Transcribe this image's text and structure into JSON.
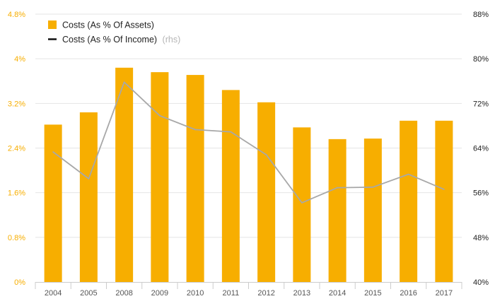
{
  "colors": {
    "bar": "#f7ae00",
    "line": "#a8a8a8",
    "legend_line": "#111111",
    "left_axis_text": "#f7ae00",
    "grid": "#e4e4e4",
    "axis": "#cccccc"
  },
  "legend": {
    "bar_label": "Costs (As % Of Assets)",
    "line_label": "Costs (As % Of Income)",
    "line_suffix": "(rhs)"
  },
  "chart_data": {
    "type": "bar",
    "categories": [
      "2004",
      "2005",
      "2008",
      "2009",
      "2010",
      "2011",
      "2012",
      "2013",
      "2014",
      "2015",
      "2016",
      "2017"
    ],
    "series": [
      {
        "name": "Costs (As % Of Assets)",
        "type": "bar",
        "axis": "left",
        "values": [
          2.82,
          3.04,
          3.84,
          3.76,
          3.71,
          3.44,
          3.22,
          2.77,
          2.56,
          2.57,
          2.89,
          2.89
        ]
      },
      {
        "name": "Costs (As % Of Income)",
        "type": "line",
        "axis": "right",
        "values": [
          63.3,
          58.5,
          75.8,
          69.8,
          67.3,
          66.9,
          62.8,
          54.2,
          56.9,
          57.0,
          59.3,
          56.6
        ]
      }
    ],
    "y_left": {
      "lim": [
        0,
        4.8
      ],
      "ticks": [
        0,
        0.8,
        1.6,
        2.4,
        3.2,
        4.0,
        4.8
      ],
      "tick_labels": [
        "0%",
        "0.8%",
        "1.6%",
        "2.4%",
        "3.2%",
        "4%",
        "4.8%"
      ]
    },
    "y_right": {
      "lim": [
        40,
        88
      ],
      "ticks": [
        40,
        48,
        56,
        64,
        72,
        80,
        88
      ],
      "tick_labels": [
        "40%",
        "48%",
        "56%",
        "64%",
        "72%",
        "80%",
        "88%"
      ]
    },
    "grid": true,
    "legend_position": "top-left"
  }
}
